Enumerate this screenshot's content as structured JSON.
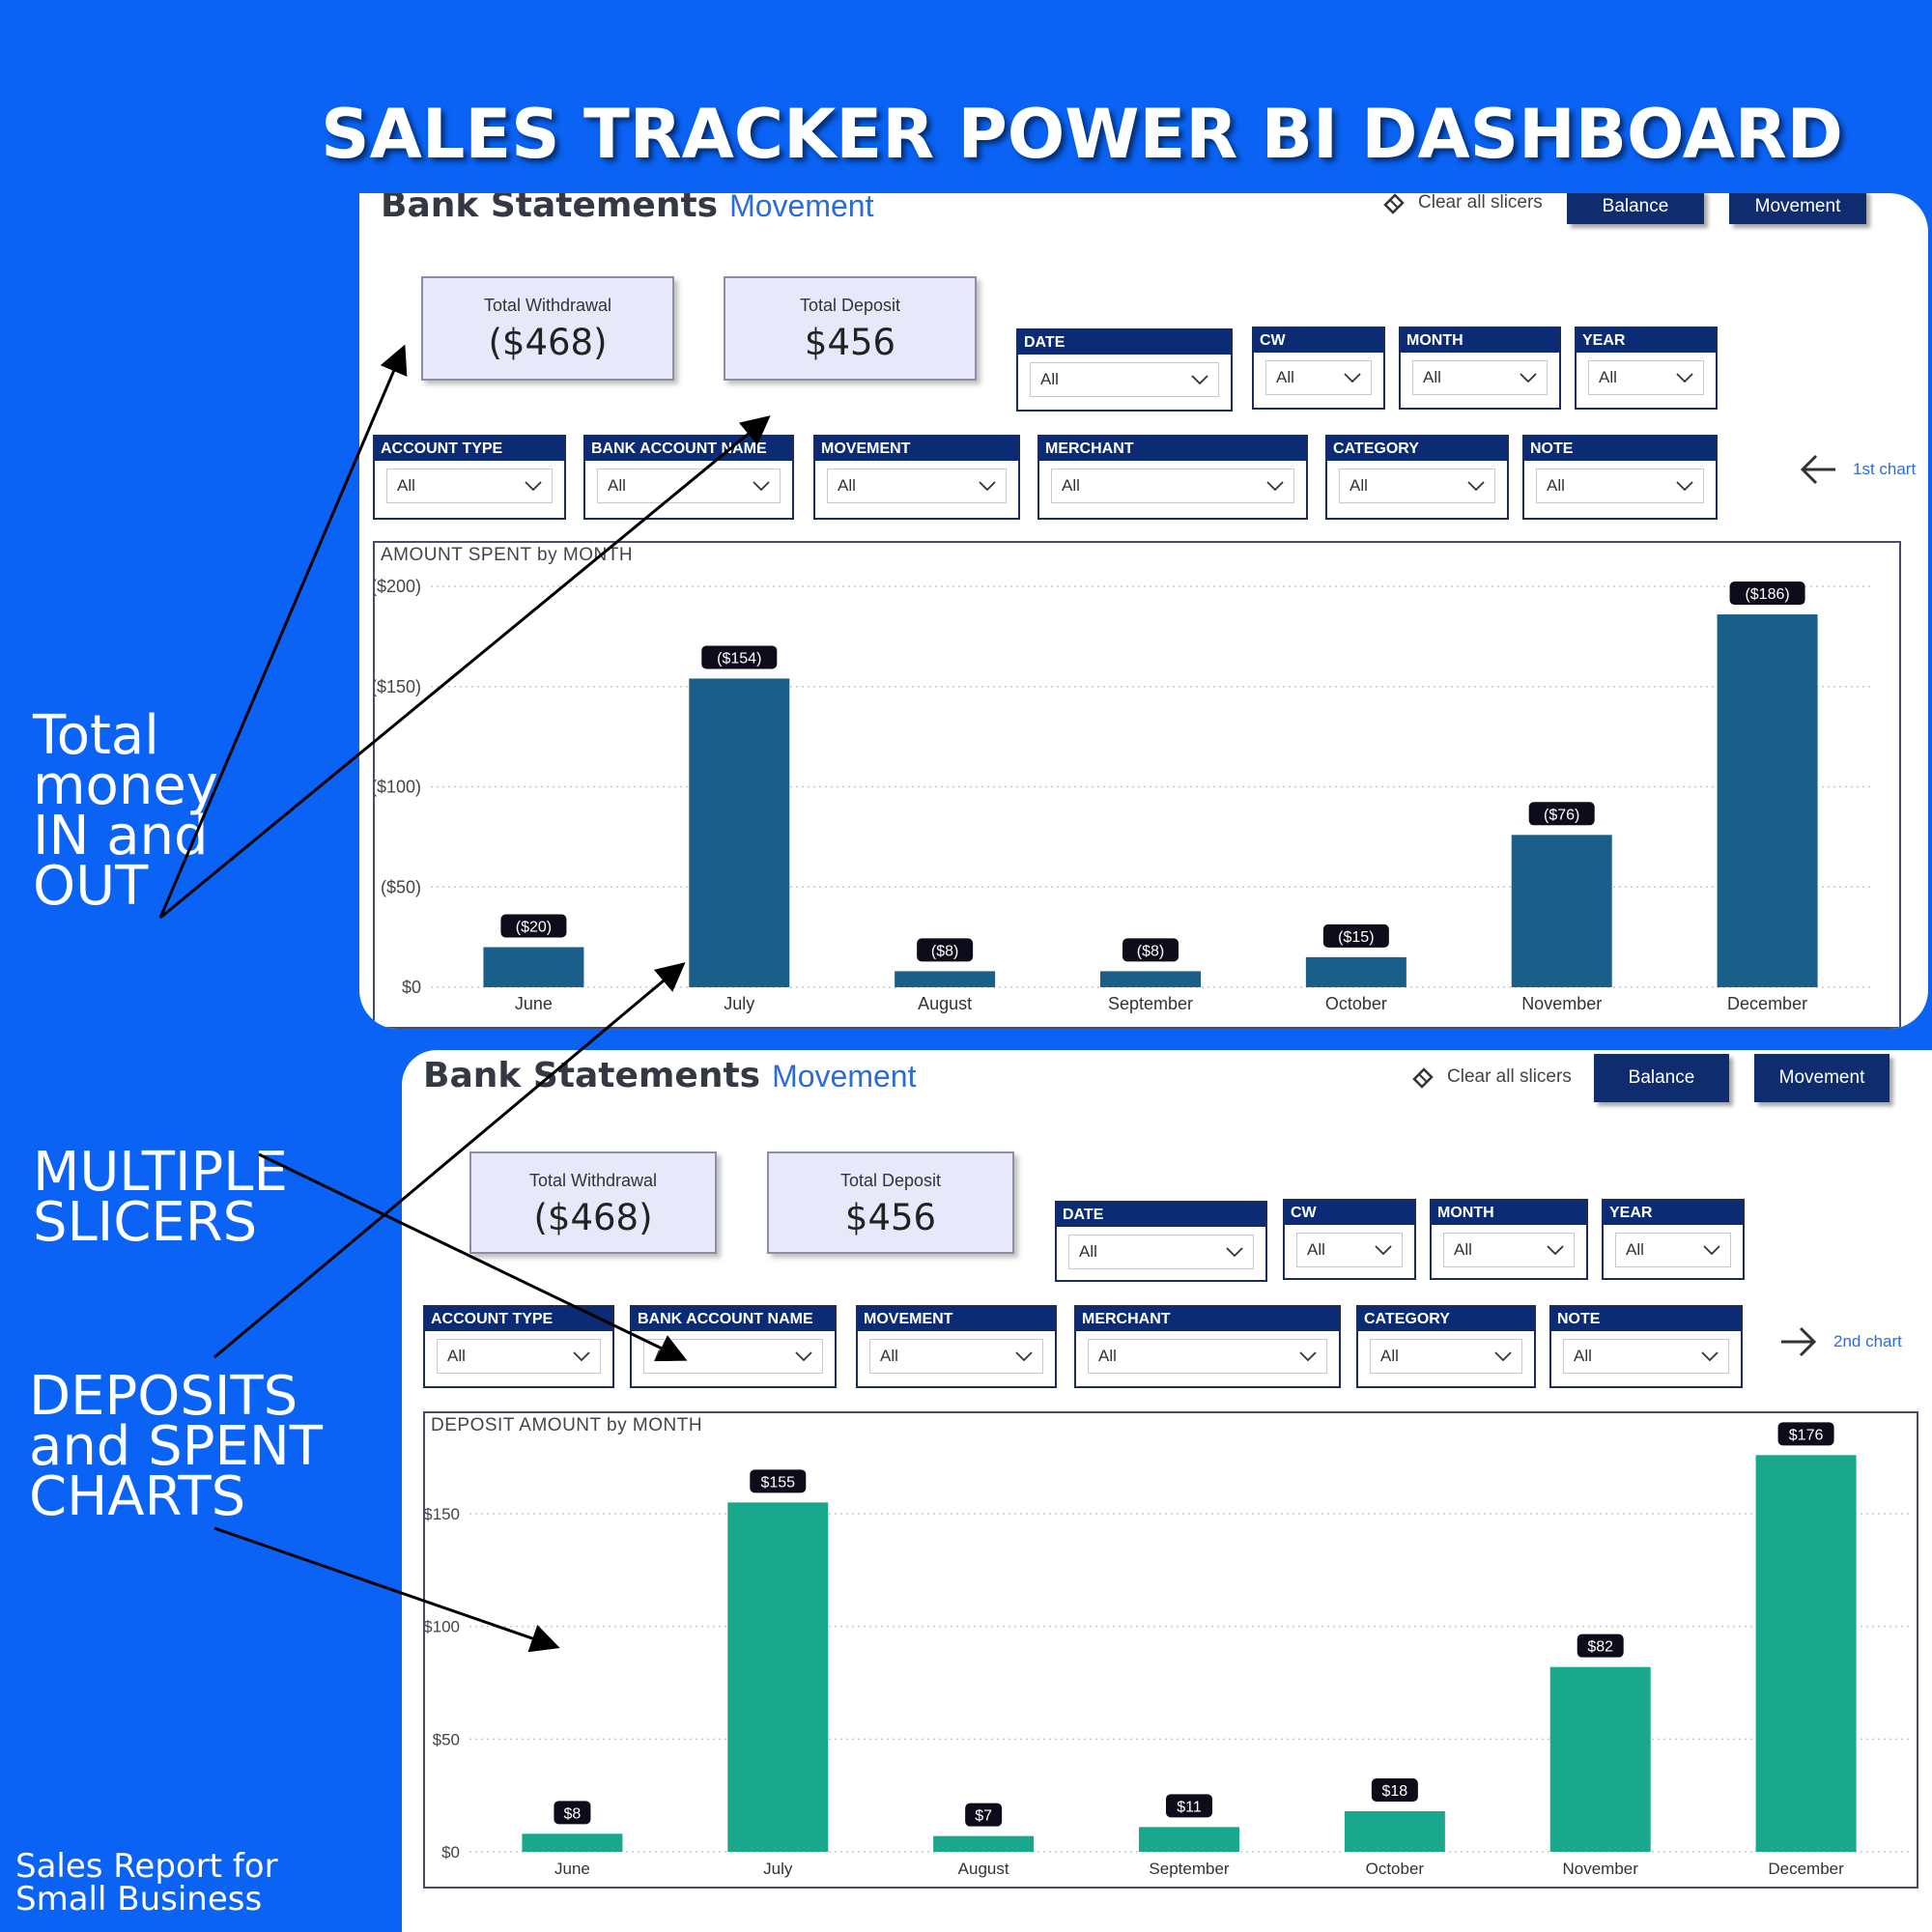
{
  "title": "SALES TRACKER POWER BI DASHBOARD",
  "callouts": {
    "money": [
      "Total",
      "money",
      "IN and",
      "OUT"
    ],
    "slicers": [
      "MULTIPLE",
      "SLICERS"
    ],
    "charts": [
      "DEPOSITS",
      "and SPENT",
      "CHARTS"
    ]
  },
  "footer": [
    "Sales Report for",
    "Small Business"
  ],
  "panels": [
    {
      "title": "Bank Statements",
      "subtitle": "Movement",
      "clear_label": "Clear all slicers",
      "balance_label": "Balance",
      "movement_label": "Movement",
      "kpi_withdrawal_label": "Total Withdrawal",
      "kpi_withdrawal_value": "($468)",
      "kpi_deposit_label": "Total Deposit",
      "kpi_deposit_value": "$456",
      "slicers": {
        "date": {
          "label": "DATE",
          "value": "All"
        },
        "cw": {
          "label": "CW",
          "value": "All"
        },
        "month": {
          "label": "MONTH",
          "value": "All"
        },
        "year": {
          "label": "YEAR",
          "value": "All"
        },
        "account_type": {
          "label": "ACCOUNT TYPE",
          "value": "All"
        },
        "bank_account_name": {
          "label": "BANK ACCOUNT NAME",
          "value": "All"
        },
        "movement": {
          "label": "MOVEMENT",
          "value": "All"
        },
        "merchant": {
          "label": "MERCHANT",
          "value": "All"
        },
        "category": {
          "label": "CATEGORY",
          "value": "All"
        },
        "note": {
          "label": "NOTE",
          "value": "All"
        }
      },
      "chart_nav_label": "1st chart",
      "chart_nav_icon": "arrow-left-icon"
    },
    {
      "title": "Bank Statements",
      "subtitle": "Movement",
      "clear_label": "Clear all slicers",
      "balance_label": "Balance",
      "movement_label": "Movement",
      "kpi_withdrawal_label": "Total Withdrawal",
      "kpi_withdrawal_value": "($468)",
      "kpi_deposit_label": "Total Deposit",
      "kpi_deposit_value": "$456",
      "slicers": {
        "date": {
          "label": "DATE",
          "value": "All"
        },
        "cw": {
          "label": "CW",
          "value": "All"
        },
        "month": {
          "label": "MONTH",
          "value": "All"
        },
        "year": {
          "label": "YEAR",
          "value": "All"
        },
        "account_type": {
          "label": "ACCOUNT TYPE",
          "value": "All"
        },
        "bank_account_name": {
          "label": "BANK ACCOUNT NAME",
          "value": "All"
        },
        "movement": {
          "label": "MOVEMENT",
          "value": "All"
        },
        "merchant": {
          "label": "MERCHANT",
          "value": "All"
        },
        "category": {
          "label": "CATEGORY",
          "value": "All"
        },
        "note": {
          "label": "NOTE",
          "value": "All"
        }
      },
      "chart_nav_label": "2nd chart",
      "chart_nav_icon": "arrow-right-icon"
    }
  ],
  "colors": {
    "background": "#0a63f5",
    "spent_bar": "#1a5e8a",
    "deposit_bar": "#1aa88c",
    "slicer_header": "#0b2c74",
    "kpi_fill": "#e7e9fb"
  },
  "chart_data": [
    {
      "type": "bar",
      "title": "AMOUNT SPENT by MONTH",
      "categories": [
        "June",
        "July",
        "August",
        "September",
        "October",
        "November",
        "December"
      ],
      "values": [
        -20,
        -154,
        -8,
        -8,
        -15,
        -76,
        -186
      ],
      "data_labels": [
        "($20)",
        "($154)",
        "($8)",
        "($8)",
        "($15)",
        "($76)",
        "($186)"
      ],
      "yticks": [
        0,
        50,
        100,
        150,
        200
      ],
      "ytick_labels": [
        "$0",
        "($50)",
        "($100)",
        "($150)",
        "($200)"
      ],
      "ylim": [
        0,
        200
      ],
      "grid": true
    },
    {
      "type": "bar",
      "title": "DEPOSIT AMOUNT by MONTH",
      "categories": [
        "June",
        "July",
        "August",
        "September",
        "October",
        "November",
        "December"
      ],
      "values": [
        8,
        155,
        7,
        11,
        18,
        82,
        176
      ],
      "data_labels": [
        "$8",
        "$155",
        "$7",
        "$11",
        "$18",
        "$82",
        "$176"
      ],
      "yticks": [
        0,
        50,
        100,
        150
      ],
      "ytick_labels": [
        "$0",
        "$50",
        "$100",
        "$150"
      ],
      "ylim": [
        0,
        180
      ],
      "grid": true
    }
  ]
}
